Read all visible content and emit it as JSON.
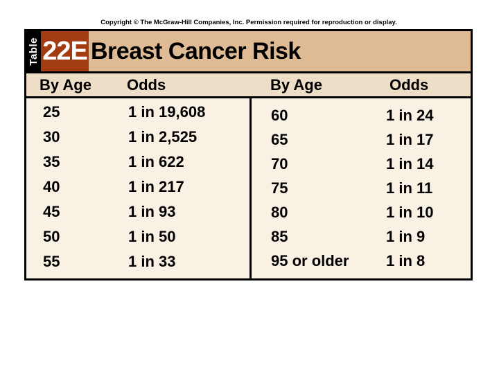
{
  "page": {
    "copyright": "Copyright © The McGraw-Hill Companies, Inc. Permission required for reproduction or display.",
    "tab_label": "Table",
    "table_code": "22E",
    "title": "Breast Cancer Risk"
  },
  "colors": {
    "code_box_rust": "#a33c12",
    "title_bar_tan": "#debb95",
    "header_row_tan": "#efdec7",
    "body_cream": "#f9f1e3",
    "border_black": "#000000",
    "background_white": "#ffffff"
  },
  "table": {
    "left": {
      "age_header": "By Age",
      "odds_header": "Odds",
      "rows": [
        {
          "age": "25",
          "odds": "1 in 19,608"
        },
        {
          "age": "30",
          "odds": "1 in 2,525"
        },
        {
          "age": "35",
          "odds": "1 in 622"
        },
        {
          "age": "40",
          "odds": "1 in 217"
        },
        {
          "age": "45",
          "odds": "1 in 93"
        },
        {
          "age": "50",
          "odds": "1 in 50"
        },
        {
          "age": "55",
          "odds": "1 in 33"
        }
      ]
    },
    "right": {
      "age_header": "By Age",
      "odds_header": "Odds",
      "rows": [
        {
          "age": "60",
          "odds": "1 in 24"
        },
        {
          "age": "65",
          "odds": "1 in 17"
        },
        {
          "age": "70",
          "odds": "1 in 14"
        },
        {
          "age": "75",
          "odds": "1 in 11"
        },
        {
          "age": "80",
          "odds": "1 in 10"
        },
        {
          "age": "85",
          "odds": "1 in 9"
        },
        {
          "age": "95 or older",
          "odds": "1 in 8"
        }
      ]
    }
  },
  "chart_data": {
    "type": "table",
    "title": "Breast Cancer Risk",
    "table_number": "Table 22E",
    "columns": [
      "By Age",
      "Odds",
      "By Age",
      "Odds"
    ],
    "rows": [
      [
        "25",
        "1 in 19,608",
        "60",
        "1 in 24"
      ],
      [
        "30",
        "1 in 2,525",
        "65",
        "1 in 17"
      ],
      [
        "35",
        "1 in 622",
        "70",
        "1 in 14"
      ],
      [
        "40",
        "1 in 217",
        "75",
        "1 in 11"
      ],
      [
        "45",
        "1 in 93",
        "80",
        "1 in 10"
      ],
      [
        "50",
        "1 in 50",
        "85",
        "1 in 9"
      ],
      [
        "55",
        "1 in 33",
        "95 or older",
        "1 in 8"
      ]
    ]
  }
}
